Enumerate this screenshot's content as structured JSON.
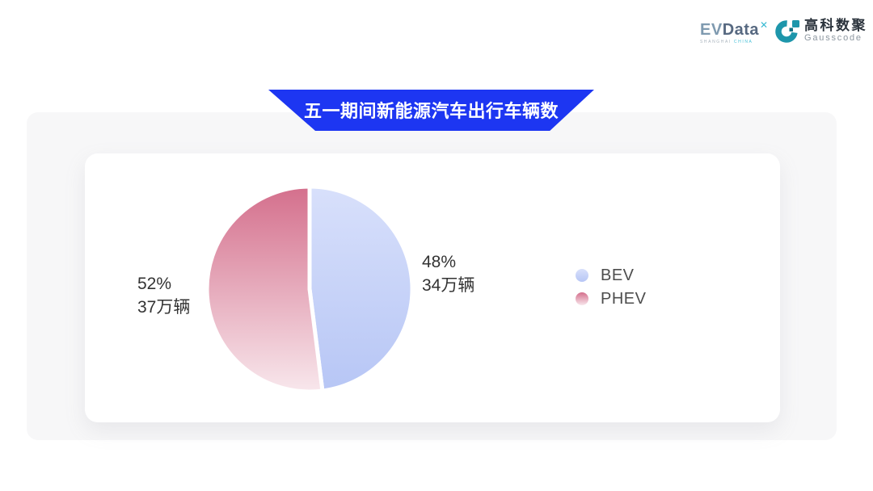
{
  "header": {
    "evdata": {
      "ev": "EV",
      "data": "Data",
      "sup": "✕",
      "sub_left": "SHANGHAI",
      "sub_right": "CHINA"
    },
    "gausscode": {
      "name_cn": "高科数聚",
      "name_en": "Gausscode",
      "icon_color": "#1d96ab"
    }
  },
  "banner": {
    "title": "五一期间新能源汽车出行车辆数",
    "color": "#1d36f2"
  },
  "chart_data": {
    "type": "pie",
    "title": "五一期间新能源汽车出行车辆数",
    "unit": "万辆",
    "start_angle": "top",
    "direction": "clockwise",
    "legend_position": "right",
    "slice_gap_color": "#ffffff",
    "series": [
      {
        "name": "BEV",
        "percent": 48,
        "value": 34,
        "label_line1": "48%",
        "label_line2": "34万辆",
        "gradient": [
          "#d8e0fb",
          "#b7c6f5"
        ]
      },
      {
        "name": "PHEV",
        "percent": 52,
        "value": 37,
        "label_line1": "52%",
        "label_line2": "37万辆",
        "gradient": [
          "#d46f8c",
          "#f8e7ec"
        ]
      }
    ]
  }
}
